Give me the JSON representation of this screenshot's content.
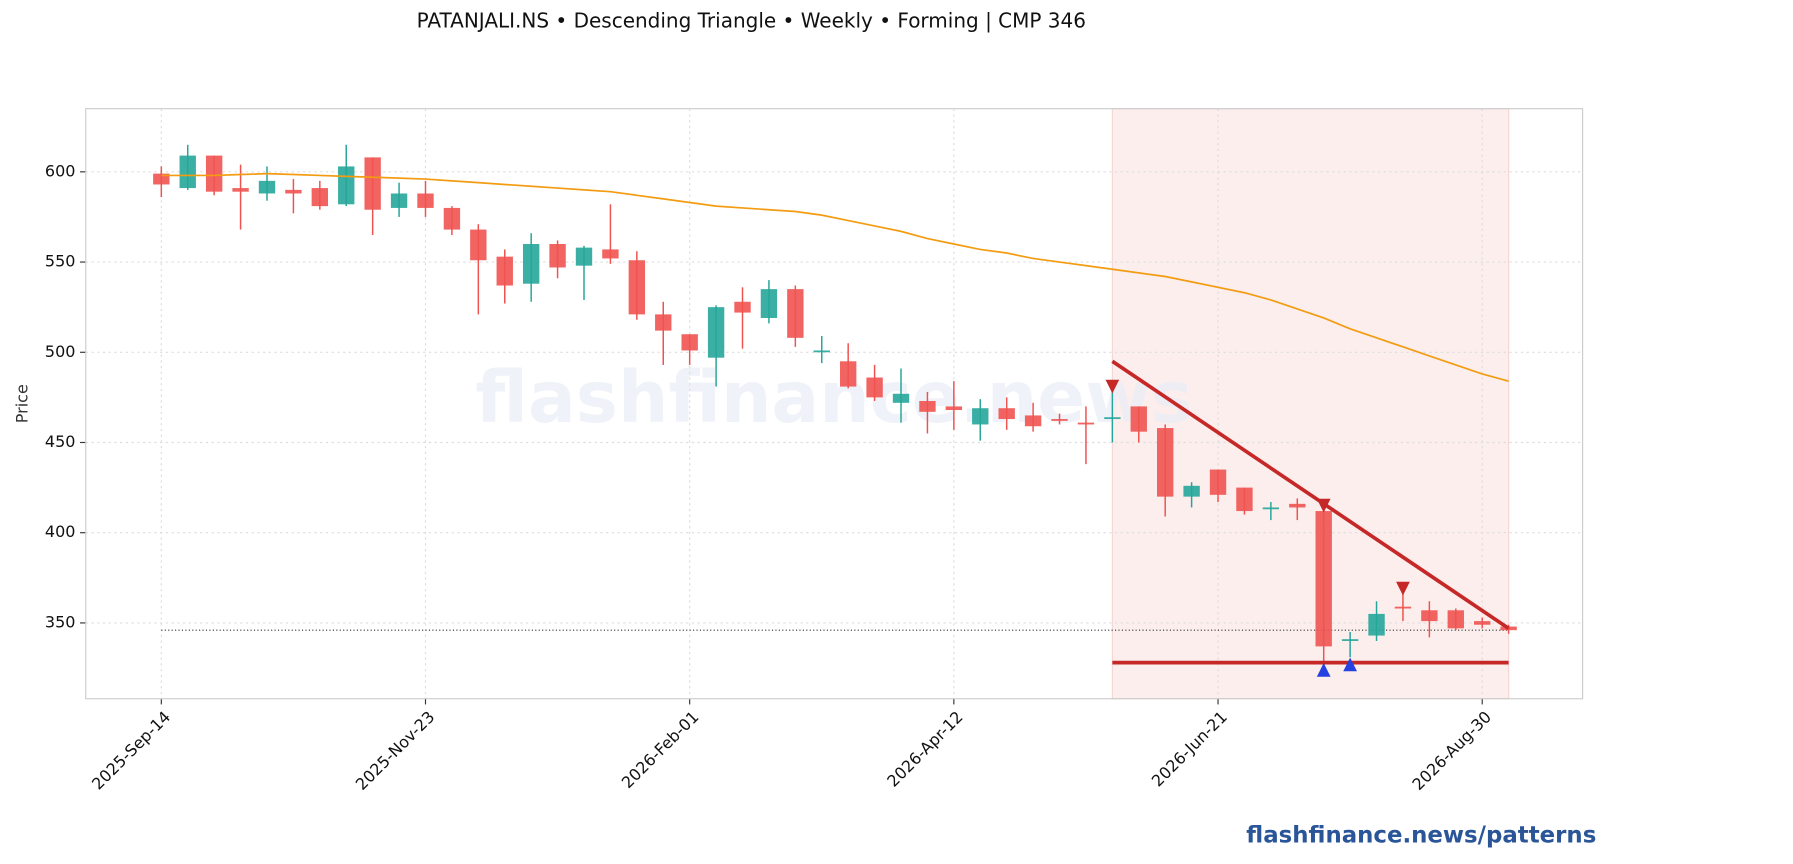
{
  "chart_data": {
    "type": "candlestick",
    "title": "PATANJALI.NS  •  Descending Triangle  •  Weekly  •  Forming  |  CMP 346",
    "y_label": "Price",
    "watermark": "flashfinance.news",
    "footer": "flashfinance.news/patterns",
    "categories": [
      "2025-Sep-14",
      null,
      null,
      null,
      null,
      null,
      null,
      null,
      null,
      null,
      "2025-Nov-23",
      null,
      null,
      null,
      null,
      null,
      null,
      null,
      null,
      null,
      "2026-Feb-01",
      null,
      null,
      null,
      null,
      null,
      null,
      null,
      null,
      null,
      "2026-Apr-12",
      null,
      null,
      null,
      null,
      null,
      null,
      null,
      null,
      null,
      "2026-Jun-21",
      null,
      null,
      null,
      null,
      null,
      null,
      null,
      null,
      null,
      "2026-Aug-30",
      null
    ],
    "xlim": [
      -2.86,
      53.8
    ],
    "ylim": [
      308,
      635
    ],
    "yticks": [
      350,
      400,
      450,
      500,
      550,
      600
    ],
    "grid": true,
    "up_color": "#26a69a",
    "down_color": "#ef5350",
    "open": [
      599,
      591,
      609,
      591,
      588,
      590,
      591,
      582,
      608,
      580,
      588,
      580,
      568,
      553,
      538,
      560,
      548,
      557,
      551,
      521,
      510,
      497,
      528,
      519,
      535,
      500,
      495,
      486,
      472,
      473,
      470,
      460,
      469,
      465,
      463,
      461,
      463,
      470,
      458,
      420,
      435,
      425,
      413,
      416,
      412,
      340,
      343,
      359,
      357,
      357,
      351,
      348
    ],
    "high": [
      603,
      615,
      609,
      604,
      603,
      596,
      595,
      615,
      608,
      594,
      595,
      581,
      571,
      557,
      566,
      562,
      559,
      582,
      556,
      528,
      510,
      526,
      536,
      540,
      537,
      509,
      505,
      493,
      491,
      478,
      484,
      474,
      475,
      472,
      466,
      470,
      480,
      470,
      460,
      428,
      435,
      425,
      417,
      419,
      415,
      345,
      362,
      366,
      362,
      358,
      353,
      349
    ],
    "low": [
      586,
      590,
      587,
      568,
      584,
      577,
      579,
      581,
      565,
      575,
      575,
      565,
      521,
      527,
      528,
      541,
      529,
      549,
      518,
      493,
      493,
      481,
      502,
      516,
      503,
      494,
      480,
      473,
      461,
      455,
      457,
      451,
      457,
      456,
      460,
      438,
      450,
      450,
      409,
      414,
      417,
      410,
      407,
      407,
      326,
      331,
      340,
      351,
      342,
      346,
      347,
      344
    ],
    "close": [
      593,
      609,
      589,
      589,
      595,
      588,
      581,
      603,
      579,
      588,
      580,
      568,
      551,
      537,
      560,
      547,
      558,
      552,
      521,
      512,
      501,
      525,
      522,
      535,
      508,
      501,
      481,
      475,
      477,
      467,
      468,
      469,
      463,
      459,
      462,
      460,
      464,
      456,
      420,
      426,
      421,
      412,
      414,
      414,
      337,
      341,
      355,
      358,
      351,
      347,
      349,
      346
    ],
    "moving_average": {
      "color": "#f39c12",
      "values": [
        598,
        598,
        598,
        598.5,
        599,
        598.5,
        598,
        597.5,
        597,
        596.5,
        596,
        595,
        594,
        593,
        592,
        591,
        590,
        589,
        587,
        585,
        583,
        581,
        580,
        579,
        578,
        576,
        573,
        570,
        567,
        563,
        560,
        557,
        555,
        552,
        550,
        548,
        546,
        544,
        542,
        539,
        536,
        533,
        529,
        524,
        519,
        513,
        508,
        503,
        498,
        493,
        488,
        484
      ]
    },
    "pattern": {
      "color": "#c62828",
      "zone": [
        36,
        51
      ],
      "zone_color": "#fbeeed",
      "resistance": {
        "x": [
          36,
          51
        ],
        "y": [
          495,
          347
        ]
      },
      "support": {
        "x": [
          36,
          51
        ],
        "y": [
          328,
          328
        ]
      },
      "peaks": {
        "color": "#c62828",
        "x": [
          36,
          44,
          47
        ],
        "y": [
          481,
          415,
          369
        ]
      },
      "troughs": {
        "color": "#2541e0",
        "x": [
          44,
          45
        ],
        "y": [
          324,
          327
        ]
      }
    },
    "cmp": 346
  }
}
